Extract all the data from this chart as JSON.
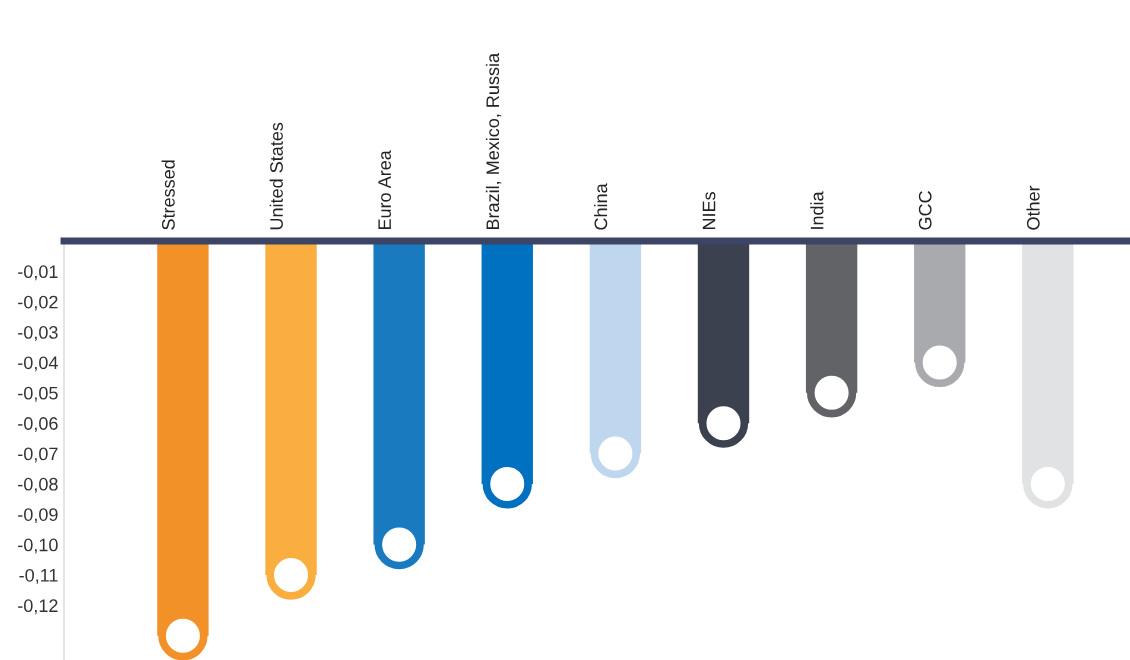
{
  "chart_data": {
    "type": "lollipop",
    "categories": [
      "Stressed",
      "United States",
      "Euro Area",
      "Brazil, Mexico, Russia",
      "China",
      "NIEs",
      "India",
      "GCC",
      "Other"
    ],
    "values": [
      -0.13,
      -0.11,
      -0.1,
      -0.08,
      -0.07,
      -0.06,
      -0.05,
      -0.04,
      -0.08
    ],
    "colors": [
      "#f39129",
      "#f9ae3f",
      "#1a7abf",
      "#0070c0",
      "#bfd7ee",
      "#3c4150",
      "#626366",
      "#a9aaae",
      "#e1e2e4"
    ],
    "ylim": [
      -0.138,
      0
    ],
    "yticks": [
      {
        "value": -0.01,
        "label": "-0,01"
      },
      {
        "value": -0.02,
        "label": "-0,02"
      },
      {
        "value": -0.03,
        "label": "-0,03"
      },
      {
        "value": -0.04,
        "label": "-0,04"
      },
      {
        "value": -0.05,
        "label": "-0,05"
      },
      {
        "value": -0.06,
        "label": "-0,06"
      },
      {
        "value": -0.07,
        "label": "-0,07"
      },
      {
        "value": -0.08,
        "label": "-0,08"
      },
      {
        "value": -0.09,
        "label": "-0,09"
      },
      {
        "value": -0.1,
        "label": "-0,10"
      },
      {
        "value": -0.11,
        "label": "-0,11"
      },
      {
        "value": -0.12,
        "label": "-0,12"
      }
    ],
    "marker": "circle",
    "grid": false,
    "legend": false
  }
}
